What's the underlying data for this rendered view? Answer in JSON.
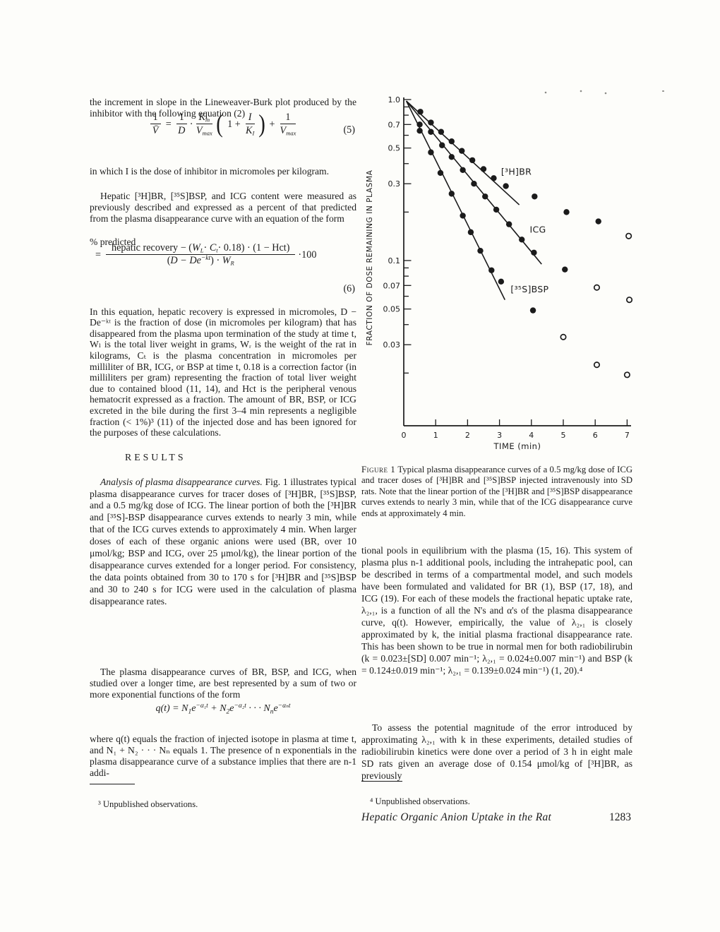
{
  "colors": {
    "ink": "#1b1b1b",
    "paper": "#fdfdfa"
  },
  "left_column": {
    "p1": "the increment in slope in the Lineweaver-Burk plot produced by the inhibitor with the following equation (2)",
    "eq5": {
      "lhs_num": "1",
      "lhs_den": "V̄",
      "equals": "=",
      "f1_num": "1",
      "f1_den": "D",
      "cdot": "·",
      "f2_num_b": "K",
      "f2_num_s": "m",
      "f2_den_b": "V",
      "f2_den_s": "max",
      "lparen": "(",
      "inner_pre": "1 +",
      "if_num": "I",
      "if_den_b": "K",
      "if_den_s": "I",
      "rparen": ")",
      "plus": "+",
      "f3_num": "1",
      "f3_den_b": "V",
      "f3_den_s": "max",
      "tag": "(5)"
    },
    "p2": "in which I is the dose of inhibitor in micromoles per kilogram.",
    "p3": "Hepatic [³H]BR, [³⁵S]BSP, and ICG content were measured as previously described and expressed as a percent of that predicted from the plasma disappearance curve with an equation of the form",
    "percent_predicted": "% predicted",
    "eq6": {
      "equals": "=",
      "n1": "hepatic recovery − (",
      "n2": "W",
      "n3": "L",
      "n4": "· ",
      "n5": "C",
      "n6": "t",
      "n7": "· 0.18) · (1 − Hct)",
      "d1": "(",
      "d2": "D − De",
      "d3": "−kt",
      "d4": ") · ",
      "d5": "W",
      "d6": "R",
      "mult": "·100",
      "tag": "(6)"
    },
    "p4": "In this equation, hepatic recovery is expressed in micromoles, D − De⁻ᵏᵗ is the fraction of dose (in micromoles per kilogram) that has disappeared from the plasma upon termination of the study at time t, Wₗ is the total liver weight in grams, Wᵣ is the weight of the rat in kilograms, Cₜ is the plasma concentration in micromoles per milliliter of BR, ICG, or BSP at time t, 0.18 is a correction factor (in milliliters per gram) representing the fraction of total liver weight due to contained blood (11, 14), and Hct is the peripheral venous hematocrit expressed as a fraction. The amount of BR, BSP, or ICG excreted in the bile during the first 3–4 min represents a negligible fraction (< 1%)³ (11) of the injected dose and has been ignored for the purposes of these calculations.",
    "results_heading": "RESULTS",
    "p5_lead": "Analysis of plasma disappearance curves.",
    "p5_rest": " Fig. 1 illustrates typical plasma disappearance curves for tracer doses of [³H]BR, [³⁵S]BSP, and a 0.5 mg/kg dose of ICG. The linear portion of both the [³H]BR and [³⁵S]-BSP disappearance curves extends to nearly 3 min, while that of the ICG curves extends to approximately 4 min. When larger doses of each of these organic anions were used (BR, over 10 μmol/kg; BSP and ICG, over 25 μmol/kg), the linear portion of the disappearance curves extended for a longer period. For consistency, the data points obtained from 30 to 170 s for [³H]BR and [³⁵S]BSP and 30 to 240 s for ICG were used in the calculation of plasma disappearance rates.",
    "p6": "The plasma disappearance curves of BR, BSP, and ICG, when studied over a longer time, are best represented by a sum of two or more exponential functions of the form",
    "eq_q": {
      "b1": "q(t) = N",
      "s1": "1",
      "b2": "e",
      "p1": "−α₁t",
      "b3": " + N",
      "s2": "2",
      "b4": "e",
      "p2": "−α₂t",
      "b5": " · · · N",
      "s3": "n",
      "b6": "e",
      "p3": "−αₙt"
    },
    "p7": "where q(t) equals the fraction of injected isotope in plasma at time t, and N₁ + N₂ · · · Nₙ equals 1. The presence of n exponentials in the plasma disappearance curve of a substance implies that there are n-1 addi-",
    "footnote": "³ Unpublished observations."
  },
  "right_column": {
    "caption_label": "Figure 1",
    "caption_text": " Typical plasma disappearance curves of a 0.5 mg/kg dose of ICG and tracer doses of [³H]BR and [³⁵S]BSP injected intravenously into SD rats. Note that the linear portion of the [³H]BR and [³⁵S]BSP disappearance curves extends to nearly 3 min, while that of the ICG disappearance curve ends at approximately 4 min.",
    "p8": "tional pools in equilibrium with the plasma (15, 16). This system of plasma plus n-1 additional pools, including the intrahepatic pool, can be described in terms of a compartmental model, and such models have been formulated and validated for BR (1), BSP (17, 18), and ICG (19). For each of these models the fractional hepatic uptake rate, λ₂,₁, is a function of all the N's and α's of the plasma disappearance curve, q(t). However, empirically, the value of λ₂,₁ is closely approximated by k, the initial plasma fractional disappearance rate. This has been shown to be true in normal men for both radiobilirubin (k = 0.023±[SD] 0.007 min⁻¹; λ₂,₁ = 0.024±0.007 min⁻¹) and BSP (k = 0.124±0.019 min⁻¹; λ₂,₁ = 0.139±0.024 min⁻¹) (1, 20).⁴",
    "p9": "To assess the potential magnitude of the error introduced by approximating λ₂,₁ with k in these experiments, detailed studies of radiobilirubin kinetics were done over a period of 3 h in eight male SD rats given an average dose of 0.154 μmol/kg of [³H]BR, as previously",
    "footnote": "⁴ Unpublished observations."
  },
  "footer": {
    "running_title": "Hepatic Organic Anion Uptake in the Rat",
    "page_number": "1283"
  },
  "chart_data": {
    "type": "scatter",
    "y_scale": "log",
    "xlabel": "TIME (min)",
    "ylabel": "FRACTION OF DOSE REMAINING IN PLASMA",
    "xlim": [
      0,
      7.1
    ],
    "ylim": [
      0.0095,
      1.05
    ],
    "grid": false,
    "x_tick_labels": [
      "0",
      "1",
      "2",
      "3",
      "4",
      "5",
      "6",
      "7"
    ],
    "y_major_ticks": [
      {
        "v": 1.0,
        "label": "1.0"
      },
      {
        "v": 0.7,
        "label": "0.7"
      },
      {
        "v": 0.5,
        "label": "0.5"
      },
      {
        "v": 0.3,
        "label": "0.3"
      },
      {
        "v": 0.1,
        "label": "0.1"
      },
      {
        "v": 0.07,
        "label": "0.07"
      },
      {
        "v": 0.05,
        "label": "0.05"
      },
      {
        "v": 0.03,
        "label": "0.03"
      }
    ],
    "y_minor_ticks": [
      0.9,
      0.8,
      0.6,
      0.4,
      0.2,
      0.09,
      0.08,
      0.06,
      0.04,
      0.02
    ],
    "series": [
      {
        "name": "[³H]BR",
        "label_pos": [
          3.05,
          0.355
        ],
        "fit_line": [
          [
            0.08,
            0.98
          ],
          [
            3.62,
            0.222
          ]
        ],
        "points": [
          [
            0.52,
            0.84
          ],
          [
            0.85,
            0.72
          ],
          [
            1.17,
            0.63
          ],
          [
            1.5,
            0.55
          ],
          [
            1.82,
            0.48
          ],
          [
            2.15,
            0.42
          ],
          [
            2.5,
            0.37
          ],
          [
            2.82,
            0.325
          ],
          [
            3.2,
            0.29
          ],
          [
            4.1,
            0.25
          ],
          [
            5.1,
            0.2
          ],
          [
            6.1,
            0.175
          ]
        ],
        "open_points": [
          [
            7.05,
            0.142
          ]
        ]
      },
      {
        "name": "ICG",
        "label_pos": [
          3.95,
          0.155
        ],
        "fit_line": [
          [
            0.08,
            0.98
          ],
          [
            4.32,
            0.095
          ]
        ],
        "points": [
          [
            0.5,
            0.7
          ],
          [
            0.85,
            0.63
          ],
          [
            1.2,
            0.52
          ],
          [
            1.5,
            0.44
          ],
          [
            1.85,
            0.365
          ],
          [
            2.2,
            0.3
          ],
          [
            2.55,
            0.25
          ],
          [
            2.9,
            0.207
          ],
          [
            3.3,
            0.168
          ],
          [
            3.7,
            0.135
          ],
          [
            4.08,
            0.112
          ],
          [
            5.05,
            0.088
          ]
        ],
        "open_points": [
          [
            6.05,
            0.068
          ],
          [
            7.07,
            0.057
          ]
        ]
      },
      {
        "name": "[³⁵S]BSP",
        "label_pos": [
          3.35,
          0.066
        ],
        "fit_line": [
          [
            0.08,
            0.98
          ],
          [
            3.17,
            0.057
          ]
        ],
        "points": [
          [
            0.5,
            0.64
          ],
          [
            0.85,
            0.47
          ],
          [
            1.15,
            0.35
          ],
          [
            1.5,
            0.26
          ],
          [
            1.85,
            0.19
          ],
          [
            2.1,
            0.15
          ],
          [
            2.4,
            0.115
          ],
          [
            2.75,
            0.087
          ],
          [
            3.05,
            0.074
          ],
          [
            4.05,
            0.049
          ]
        ],
        "open_points": [
          [
            5.0,
            0.0335
          ],
          [
            6.05,
            0.0225
          ],
          [
            7.0,
            0.0195
          ]
        ]
      }
    ]
  }
}
